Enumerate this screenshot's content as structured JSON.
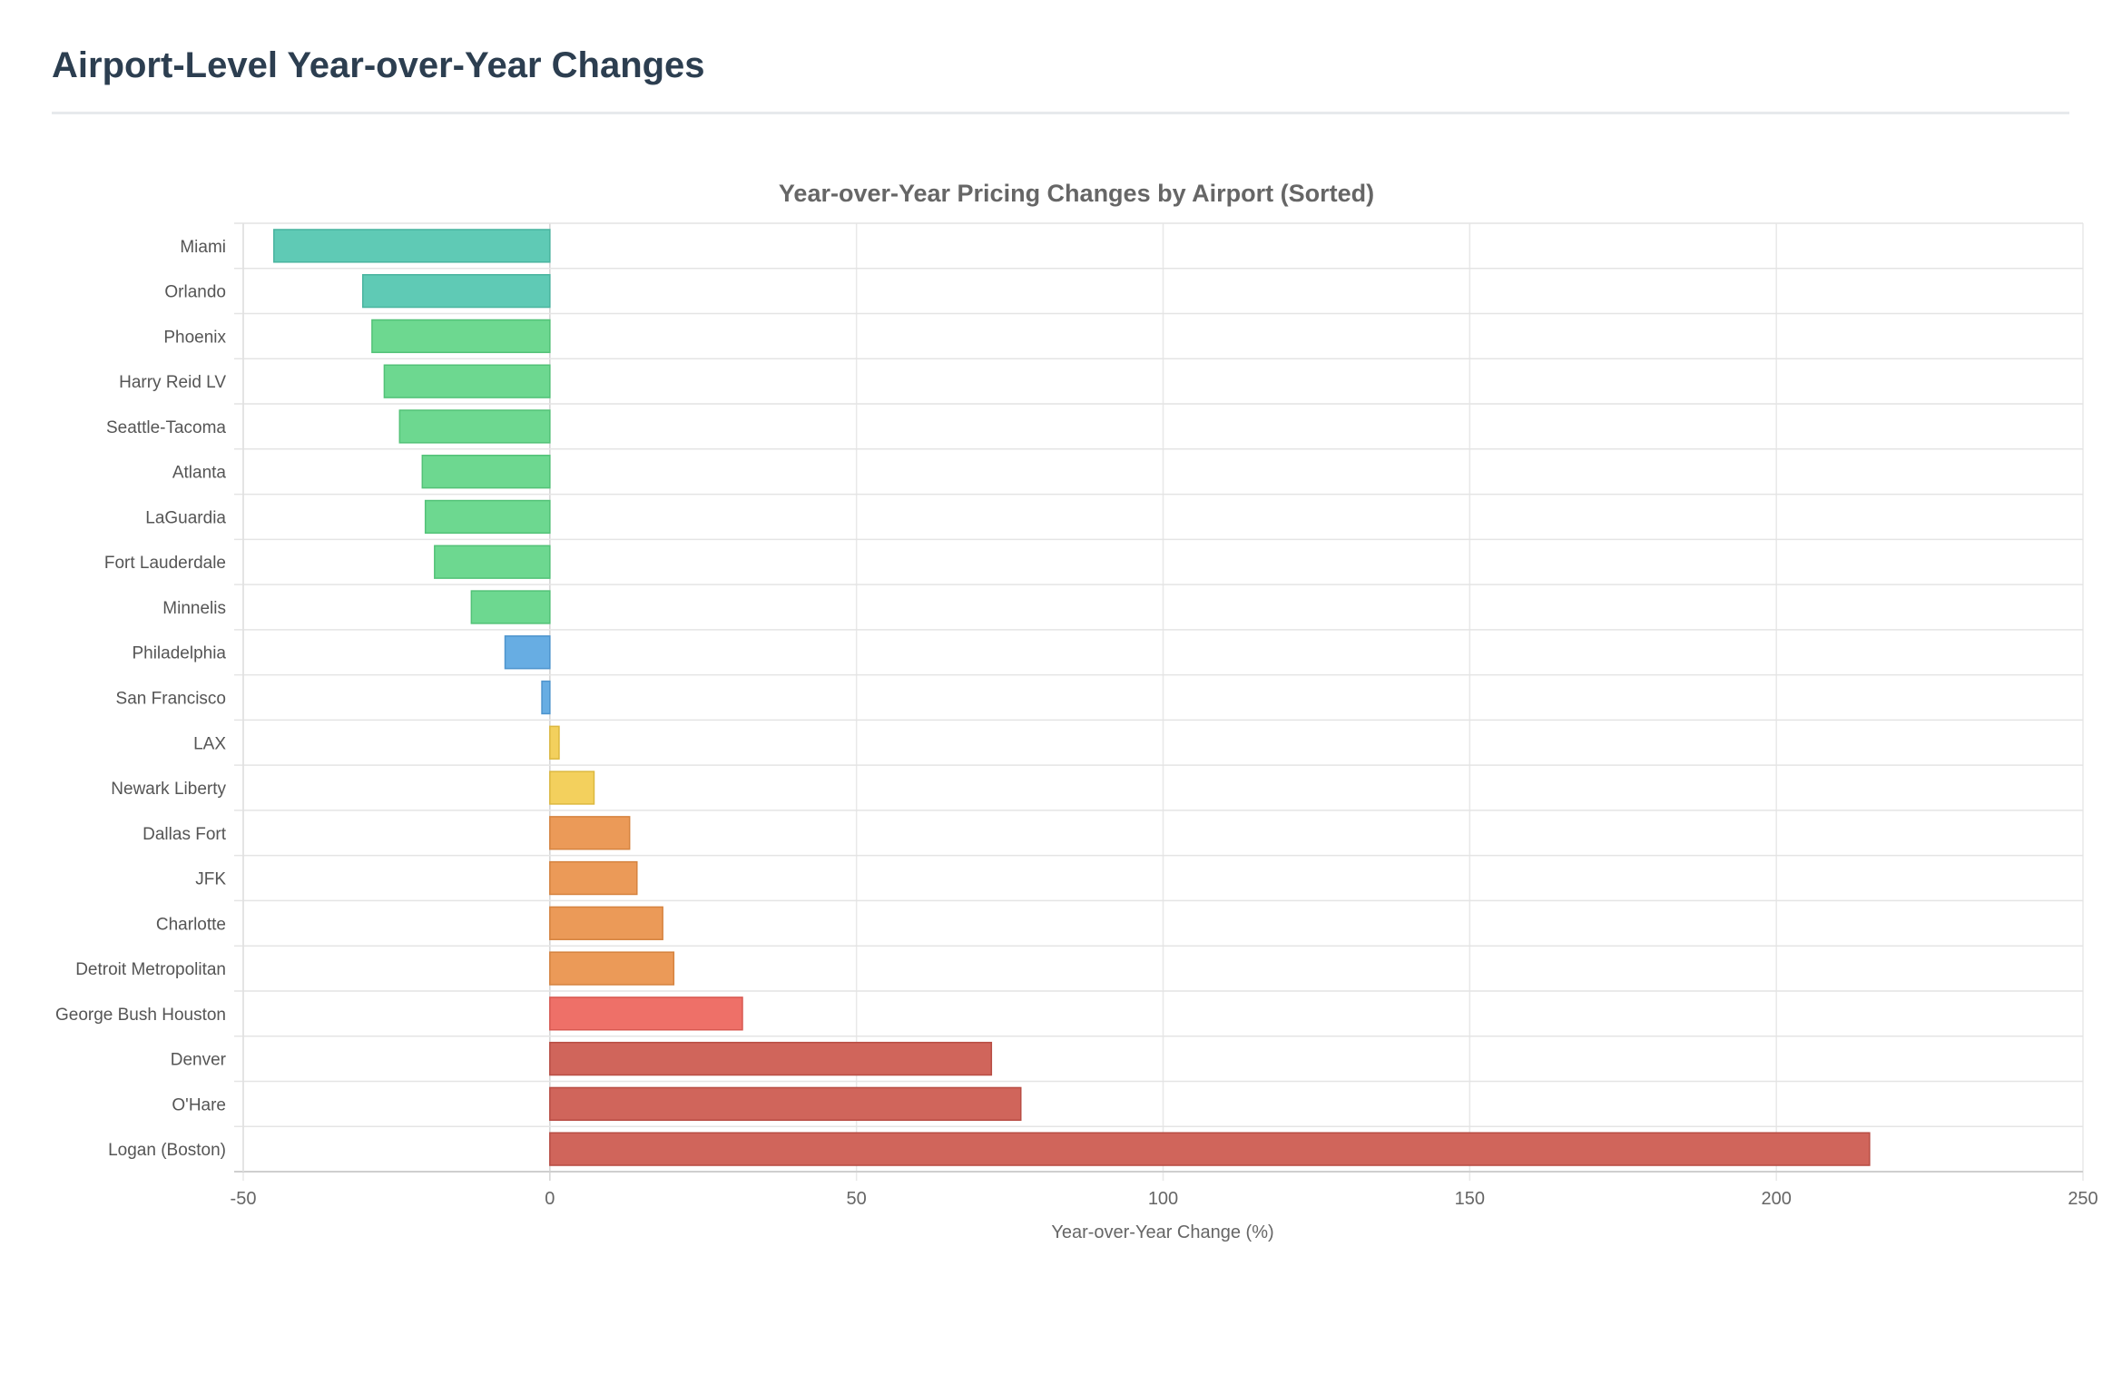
{
  "page": {
    "title": "Airport-Level Year-over-Year Changes"
  },
  "chart_data": {
    "type": "bar",
    "orientation": "horizontal",
    "title": "Year-over-Year Pricing Changes by Airport (Sorted)",
    "xlabel": "Year-over-Year Change (%)",
    "ylabel": "",
    "xlim": [
      -50,
      250
    ],
    "xticks": [
      -50,
      0,
      50,
      100,
      150,
      200,
      250
    ],
    "grid": true,
    "categories": [
      "Miami",
      "Orlando",
      "Phoenix",
      "Harry Reid LV",
      "Seattle-Tacoma",
      "Atlanta",
      "LaGuardia",
      "Fort Lauderdale",
      "Minnelis",
      "Philadelphia",
      "San Francisco",
      "LAX",
      "Newark Liberty",
      "Dallas Fort",
      "JFK",
      "Charlotte",
      "Detroit Metropolitan",
      "George Bush Houston",
      "Denver",
      "O'Hare",
      "Logan (Boston)"
    ],
    "values": [
      -45,
      -30.5,
      -29,
      -27,
      -24.5,
      -20.8,
      -20.3,
      -18.8,
      -12.8,
      -7.3,
      -1.3,
      1.5,
      7.2,
      13,
      14.2,
      18.4,
      20.2,
      31.4,
      72,
      76.8,
      215.2
    ],
    "colors": [
      "#5fcab5",
      "#5fcab5",
      "#6dd890",
      "#6dd890",
      "#6dd890",
      "#6dd890",
      "#6dd890",
      "#6dd890",
      "#6dd890",
      "#67ade3",
      "#67ade3",
      "#f3d05d",
      "#f3d05d",
      "#eb9a58",
      "#eb9a58",
      "#eb9a58",
      "#eb9a58",
      "#ee7068",
      "#d0655b",
      "#d0655b",
      "#d0655b"
    ],
    "borders": [
      "#49b49f",
      "#49b49f",
      "#52c277",
      "#52c277",
      "#52c277",
      "#52c277",
      "#52c277",
      "#52c277",
      "#52c277",
      "#4d94cd",
      "#4d94cd",
      "#dcb83f",
      "#dcb83f",
      "#d5833f",
      "#d5833f",
      "#d5833f",
      "#d5833f",
      "#d85850",
      "#b84d44",
      "#b84d44",
      "#b84d44"
    ]
  }
}
